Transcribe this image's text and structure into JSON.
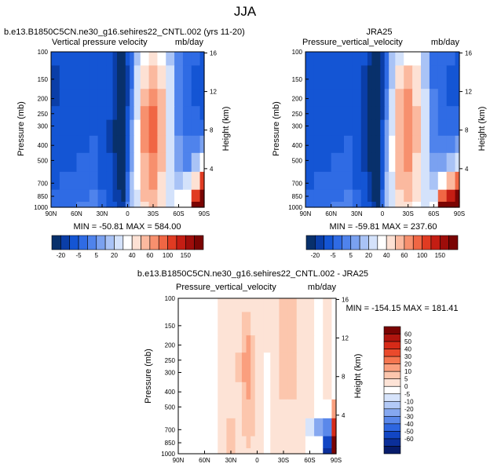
{
  "figure_title": "JJA",
  "colors": {
    "page_background": "#ffffff",
    "missing_data": "#ffffff",
    "frame": "#000000"
  },
  "chart_data": [
    {
      "type": "heatmap",
      "case_title": "b.e13.B1850C5CN.ne30_g16.sehires22_CNTL.002 (yrs 11-20)",
      "title_left": "Vertical pressure velocity",
      "title_right": "mb/day",
      "xlabel": "",
      "ylabel": "Pressure (mb)",
      "y2label": "Height (km)",
      "x_ticks": [
        "90N",
        "60N",
        "30N",
        "0",
        "30S",
        "60S",
        "90S"
      ],
      "x_range": [
        -90,
        90
      ],
      "y_ticks": [
        100,
        150,
        200,
        250,
        300,
        400,
        500,
        700,
        850,
        1000
      ],
      "y_range": [
        100,
        1000
      ],
      "y_scale": "log",
      "y_inverted": true,
      "y2_ticks": [
        4,
        8,
        12,
        16
      ],
      "stats": "MIN = -50.81  MAX = 584.00",
      "grid": false,
      "colorbar": {
        "orientation": "horizontal",
        "labels": [
          "-20",
          "-5",
          "5",
          "20",
          "40",
          "60",
          "100",
          "150"
        ],
        "colors": [
          "#08306b",
          "#0a3ea8",
          "#1455d4",
          "#2f6be4",
          "#4f83ec",
          "#7aa1f0",
          "#a9c3f6",
          "#d4e2fb",
          "#ffffff",
          "#fde1d4",
          "#fbb99f",
          "#f7906e",
          "#f06644",
          "#e03b22",
          "#c41d13",
          "#9e0d0a",
          "#7a0403"
        ]
      },
      "values_unit": "mb/day",
      "lat": [
        90,
        70,
        50,
        40,
        30,
        20,
        15,
        10,
        5,
        0,
        -5,
        -10,
        -20,
        -30,
        -40,
        -50,
        -60,
        -70,
        -80,
        -90
      ],
      "levels": [
        100,
        150,
        200,
        250,
        300,
        400,
        500,
        700,
        850,
        1000
      ],
      "values": [
        [
          -20,
          -18,
          -15,
          -12,
          -12,
          -16,
          -25,
          -35,
          -45,
          -20,
          -8,
          5,
          20,
          30,
          25,
          8,
          -5,
          -8,
          -10,
          -12
        ],
        [
          -22,
          -20,
          -16,
          -13,
          -14,
          -18,
          -28,
          -38,
          -50,
          -22,
          -6,
          10,
          35,
          45,
          35,
          10,
          -5,
          -10,
          -12,
          -14
        ],
        [
          -22,
          -20,
          -16,
          -13,
          -14,
          -18,
          -28,
          -40,
          -50,
          -22,
          -4,
          15,
          45,
          55,
          40,
          12,
          -4,
          -10,
          -12,
          -14
        ],
        [
          -20,
          -18,
          -15,
          -12,
          -14,
          -20,
          -30,
          -40,
          -50,
          -20,
          -2,
          18,
          50,
          60,
          45,
          15,
          -3,
          -8,
          -10,
          -12
        ],
        [
          -18,
          -16,
          -14,
          -12,
          -15,
          -22,
          -32,
          -42,
          -50,
          -18,
          0,
          20,
          50,
          60,
          45,
          15,
          -2,
          -6,
          -8,
          -8
        ],
        [
          -16,
          -14,
          -12,
          -10,
          -15,
          -22,
          -32,
          -42,
          -48,
          -15,
          2,
          22,
          50,
          60,
          45,
          15,
          0,
          -5,
          -5,
          0
        ],
        [
          -14,
          -12,
          -10,
          -8,
          -14,
          -20,
          -30,
          -40,
          -45,
          -12,
          3,
          22,
          48,
          55,
          40,
          14,
          0,
          -2,
          5,
          20
        ],
        [
          -12,
          -10,
          -8,
          -6,
          -12,
          -18,
          -28,
          -36,
          -40,
          -10,
          5,
          20,
          45,
          50,
          38,
          12,
          5,
          10,
          30,
          80
        ],
        [
          -10,
          -8,
          -6,
          -5,
          -10,
          -16,
          -24,
          -30,
          -35,
          -8,
          5,
          18,
          40,
          45,
          35,
          15,
          null,
          null,
          80,
          200
        ],
        [
          -8,
          -6,
          -5,
          -4,
          -8,
          -12,
          -20,
          -25,
          -30,
          -5,
          5,
          15,
          35,
          40,
          30,
          10,
          null,
          null,
          150,
          584
        ]
      ]
    },
    {
      "type": "heatmap",
      "case_title": "JRA25",
      "title_left": "Pressure_vertical_velocity",
      "title_right": "mb/day",
      "xlabel": "",
      "ylabel": "Pressure (mb)",
      "y2label": "Height (km)",
      "x_ticks": [
        "90N",
        "60N",
        "30N",
        "0",
        "30S",
        "60S",
        "90S"
      ],
      "x_range": [
        -90,
        90
      ],
      "y_ticks": [
        100,
        150,
        200,
        250,
        300,
        400,
        500,
        700,
        850,
        1000
      ],
      "y_range": [
        100,
        1000
      ],
      "y_scale": "log",
      "y_inverted": true,
      "y2_ticks": [
        4,
        8,
        12,
        16
      ],
      "stats": "MIN = -59.81  MAX = 237.60",
      "grid": false,
      "colorbar": {
        "orientation": "horizontal",
        "labels": [
          "-20",
          "-5",
          "5",
          "20",
          "40",
          "60",
          "100",
          "150"
        ],
        "colors": [
          "#08306b",
          "#0a3ea8",
          "#1455d4",
          "#2f6be4",
          "#4f83ec",
          "#7aa1f0",
          "#a9c3f6",
          "#d4e2fb",
          "#ffffff",
          "#fde1d4",
          "#fbb99f",
          "#f7906e",
          "#f06644",
          "#e03b22",
          "#c41d13",
          "#9e0d0a",
          "#7a0403"
        ]
      },
      "values_unit": "mb/day",
      "lat": [
        90,
        70,
        50,
        40,
        30,
        20,
        15,
        10,
        5,
        0,
        -5,
        -10,
        -20,
        -30,
        -40,
        -50,
        -60,
        -70,
        -80,
        -90
      ],
      "levels": [
        100,
        150,
        200,
        250,
        300,
        400,
        500,
        700,
        850,
        1000
      ],
      "values": [
        [
          -18,
          -16,
          -14,
          -12,
          -12,
          -18,
          -30,
          -40,
          -50,
          -22,
          -8,
          5,
          18,
          25,
          20,
          5,
          -6,
          -8,
          -10,
          -12
        ],
        [
          -20,
          -18,
          -15,
          -13,
          -15,
          -22,
          -35,
          -45,
          -55,
          -25,
          -6,
          8,
          30,
          40,
          30,
          8,
          -6,
          -10,
          -12,
          -14
        ],
        [
          -20,
          -18,
          -15,
          -13,
          -15,
          -22,
          -35,
          -48,
          -58,
          -25,
          -4,
          12,
          40,
          50,
          35,
          10,
          -5,
          -10,
          -12,
          -12
        ],
        [
          -18,
          -16,
          -14,
          -12,
          -15,
          -24,
          -38,
          -48,
          -58,
          -22,
          -2,
          15,
          45,
          55,
          40,
          12,
          -4,
          -8,
          -10,
          -10
        ],
        [
          -16,
          -15,
          -13,
          -12,
          -16,
          -25,
          -38,
          -50,
          -58,
          -20,
          0,
          18,
          45,
          55,
          40,
          12,
          -3,
          -6,
          -8,
          -6
        ],
        [
          -15,
          -14,
          -12,
          -10,
          -16,
          -25,
          -36,
          -48,
          -55,
          -18,
          2,
          20,
          45,
          55,
          40,
          12,
          -2,
          -4,
          -2,
          0
        ],
        [
          -14,
          -12,
          -10,
          -8,
          -15,
          -22,
          -34,
          -45,
          -52,
          -15,
          3,
          20,
          42,
          50,
          38,
          12,
          0,
          0,
          5,
          10
        ],
        [
          -12,
          -10,
          -8,
          -6,
          -13,
          -20,
          -30,
          -40,
          -45,
          -12,
          5,
          18,
          40,
          45,
          35,
          12,
          5,
          20,
          40,
          60
        ],
        [
          -10,
          -8,
          -6,
          -5,
          -10,
          -18,
          -25,
          -35,
          -40,
          -10,
          5,
          15,
          35,
          40,
          30,
          12,
          10,
          60,
          120,
          150
        ],
        [
          -8,
          -6,
          -5,
          -4,
          -8,
          -14,
          -20,
          -28,
          -34,
          -6,
          5,
          12,
          30,
          35,
          25,
          10,
          20,
          150,
          237,
          200
        ]
      ]
    },
    {
      "type": "heatmap",
      "case_title": "b.e13.B1850C5CN.ne30_g16.sehires22_CNTL.002 - JRA25",
      "title_left": "Pressure_vertical_velocity",
      "title_right": "mb/day",
      "xlabel": "",
      "ylabel": "Pressure (mb)",
      "y2label": "Height (km)",
      "x_ticks": [
        "90N",
        "60N",
        "30N",
        "0",
        "30S",
        "60S",
        "90S"
      ],
      "x_range": [
        -90,
        90
      ],
      "y_ticks": [
        100,
        150,
        200,
        250,
        300,
        400,
        500,
        700,
        850,
        1000
      ],
      "y_range": [
        100,
        1000
      ],
      "y_scale": "log",
      "y_inverted": true,
      "y2_ticks": [
        4,
        8,
        12,
        16
      ],
      "stats": "MIN = -154.15  MAX = 181.41",
      "grid": false,
      "colorbar": {
        "orientation": "vertical",
        "labels": [
          "60",
          "50",
          "40",
          "30",
          "20",
          "10",
          "5",
          "0",
          "-5",
          "-10",
          "-20",
          "-30",
          "-40",
          "-50",
          "-60"
        ],
        "colors": [
          "#7a0403",
          "#b0150e",
          "#d62a18",
          "#ea4a2c",
          "#f57650",
          "#fa9f7e",
          "#fcc6ad",
          "#fde3d6",
          "#ffffff",
          "#d7e4fb",
          "#b2c9f6",
          "#86a8f0",
          "#5a88ea",
          "#2e66e0",
          "#1246c4",
          "#0b2f9a",
          "#071c6b"
        ]
      },
      "values_unit": "mb/day",
      "lat": [
        90,
        70,
        50,
        40,
        30,
        20,
        15,
        10,
        5,
        0,
        -5,
        -10,
        -20,
        -30,
        -40,
        -50,
        -60,
        -70,
        -80,
        -90
      ],
      "levels": [
        100,
        150,
        200,
        250,
        300,
        400,
        500,
        700,
        850,
        1000
      ],
      "values": [
        [
          -2,
          -2,
          -2,
          0,
          0,
          2,
          4,
          4,
          4,
          2,
          0,
          0,
          2,
          5,
          5,
          3,
          0,
          -2,
          0,
          -2
        ],
        [
          -2,
          -2,
          -2,
          0,
          0,
          3,
          6,
          6,
          4,
          2,
          0,
          0,
          3,
          5,
          5,
          3,
          0,
          -2,
          0,
          -2
        ],
        [
          -3,
          -3,
          -2,
          0,
          0,
          4,
          8,
          10,
          5,
          3,
          0,
          0,
          4,
          5,
          5,
          3,
          0,
          -2,
          0,
          -2
        ],
        [
          -3,
          -3,
          -2,
          0,
          0,
          5,
          10,
          12,
          6,
          3,
          0,
          -2,
          4,
          5,
          5,
          3,
          1,
          -2,
          0,
          -2
        ],
        [
          -3,
          -3,
          -2,
          0,
          0,
          5,
          10,
          12,
          6,
          3,
          0,
          -2,
          4,
          5,
          5,
          3,
          1,
          -2,
          0,
          -2
        ],
        [
          -3,
          -3,
          -2,
          0,
          2,
          4,
          8,
          10,
          6,
          3,
          0,
          -2,
          4,
          5,
          5,
          3,
          1,
          -2,
          0,
          -2
        ],
        [
          -3,
          -3,
          -2,
          0,
          3,
          4,
          6,
          8,
          6,
          2,
          0,
          -2,
          3,
          4,
          4,
          3,
          1,
          -4,
          -5,
          10
        ],
        [
          -3,
          -3,
          -2,
          0,
          5,
          4,
          5,
          6,
          5,
          2,
          0,
          -2,
          3,
          4,
          4,
          3,
          -10,
          -25,
          -40,
          40
        ],
        [
          -3,
          -3,
          -2,
          0,
          6,
          4,
          4,
          5,
          4,
          2,
          0,
          -2,
          3,
          3,
          3,
          3,
          null,
          null,
          -60,
          60
        ],
        [
          -3,
          -3,
          -2,
          0,
          5,
          3,
          3,
          4,
          3,
          1,
          0,
          -2,
          2,
          3,
          3,
          2,
          null,
          null,
          -150,
          181
        ]
      ]
    }
  ]
}
